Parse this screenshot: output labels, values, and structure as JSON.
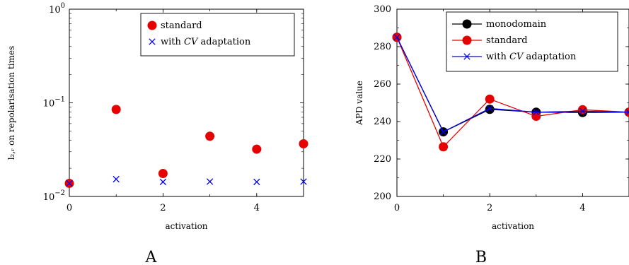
{
  "chart_data": [
    {
      "type": "scatter",
      "panel_label": "A",
      "xlabel": "activation",
      "ylabel": "l₂,ᵣ on repolarisation times",
      "xlim": [
        0,
        5
      ],
      "ylim": [
        0.01,
        1
      ],
      "yscale": "log",
      "xticks": [
        0,
        2,
        4
      ],
      "xtick_labels": [
        "0",
        "2",
        "4"
      ],
      "yticks": [
        0.01,
        0.1,
        1
      ],
      "ytick_labels": [
        {
          "base": "10",
          "exp": "−2"
        },
        {
          "base": "10",
          "exp": "−1"
        },
        {
          "base": "10",
          "exp": "0"
        }
      ],
      "grid": false,
      "legend_position": "top-right",
      "series": [
        {
          "name": "standard",
          "marker": "circle",
          "color": "#e60000",
          "x": [
            0,
            1,
            2,
            3,
            4,
            5
          ],
          "y": [
            0.0138,
            0.085,
            0.0176,
            0.044,
            0.032,
            0.0365
          ]
        },
        {
          "name": "with CV adaptation",
          "marker": "cross",
          "color": "#0000e6",
          "x": [
            0,
            1,
            2,
            3,
            4,
            5
          ],
          "y": [
            0.0138,
            0.0153,
            0.0143,
            0.0144,
            0.0143,
            0.0144
          ]
        }
      ]
    },
    {
      "type": "line",
      "panel_label": "B",
      "xlabel": "activation",
      "ylabel": "APD value",
      "xlim": [
        0,
        5
      ],
      "ylim": [
        200,
        300
      ],
      "xticks": [
        0,
        2,
        4
      ],
      "xtick_labels": [
        "0",
        "2",
        "4"
      ],
      "yticks": [
        200,
        220,
        240,
        260,
        280,
        300
      ],
      "ytick_labels": [
        "200",
        "220",
        "240",
        "260",
        "280",
        "300"
      ],
      "grid": false,
      "legend_position": "top-right",
      "series": [
        {
          "name": "monodomain",
          "marker": "circle",
          "color": "#000000",
          "x": [
            0,
            1,
            2,
            3,
            4,
            5
          ],
          "y": [
            285,
            234.5,
            246.5,
            245,
            244.8,
            245
          ]
        },
        {
          "name": "standard",
          "marker": "circle",
          "color": "#e60000",
          "x": [
            0,
            1,
            2,
            3,
            4,
            5
          ],
          "y": [
            285,
            226.5,
            252,
            242.8,
            246.3,
            245
          ]
        },
        {
          "name": "with CV adaptation",
          "marker": "cross",
          "color": "#0000e6",
          "x": [
            0,
            1,
            2,
            3,
            4,
            5
          ],
          "y": [
            285,
            234.5,
            247,
            245,
            245.5,
            245
          ]
        }
      ]
    }
  ]
}
